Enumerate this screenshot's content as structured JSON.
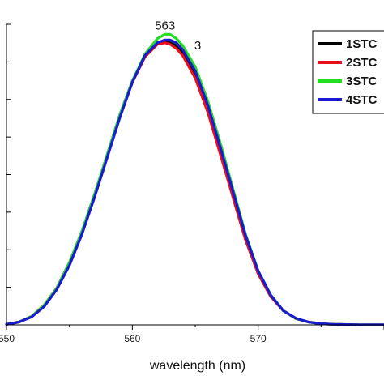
{
  "chart_data": {
    "type": "line",
    "xlabel": "wavelength (nm)",
    "x_ticks": [
      550,
      560,
      570
    ],
    "x_tick_labels": [
      "550",
      "560",
      "570"
    ],
    "xlim": [
      550,
      580
    ],
    "ylim": [
      0,
      1.06
    ],
    "y_tick_count": 8,
    "legend_position": "top-right",
    "annotations": [
      {
        "text": "563",
        "x": 562.6,
        "y": 1.03
      },
      {
        "text": "3",
        "x": 565.2,
        "y": 0.96
      }
    ],
    "series": [
      {
        "name": "1STC",
        "color": "#000000",
        "x": [
          550,
          551,
          552,
          553,
          554,
          555,
          556,
          557,
          558,
          559,
          560,
          561,
          562,
          562.6,
          563,
          563.5,
          564,
          565,
          566,
          567,
          568,
          569,
          570,
          571,
          572,
          573,
          574,
          575,
          576,
          577,
          578,
          579,
          580
        ],
        "y": [
          0.002,
          0.01,
          0.03,
          0.07,
          0.13,
          0.22,
          0.33,
          0.46,
          0.6,
          0.74,
          0.86,
          0.95,
          0.995,
          1.0,
          0.995,
          0.985,
          0.96,
          0.88,
          0.76,
          0.61,
          0.45,
          0.3,
          0.18,
          0.1,
          0.05,
          0.022,
          0.01,
          0.004,
          0.002,
          0.001,
          0.0,
          0.0,
          0.0
        ]
      },
      {
        "name": "2STC",
        "color": "#e8101a",
        "x": [
          550,
          551,
          552,
          553,
          554,
          555,
          556,
          557,
          558,
          559,
          560,
          561,
          562,
          562.6,
          563,
          563.5,
          564,
          565,
          566,
          567,
          568,
          569,
          570,
          571,
          572,
          573,
          574,
          575,
          576,
          577,
          578,
          579,
          580
        ],
        "y": [
          0.002,
          0.01,
          0.03,
          0.07,
          0.13,
          0.215,
          0.325,
          0.455,
          0.595,
          0.735,
          0.855,
          0.945,
          0.99,
          0.995,
          0.99,
          0.975,
          0.95,
          0.87,
          0.75,
          0.6,
          0.45,
          0.3,
          0.18,
          0.1,
          0.05,
          0.022,
          0.01,
          0.004,
          0.002,
          0.001,
          0.0,
          0.0,
          0.0
        ]
      },
      {
        "name": "3STC",
        "color": "#22dd22",
        "x": [
          550,
          551,
          552,
          553,
          554,
          555,
          556,
          557,
          558,
          559,
          560,
          561,
          562,
          562.6,
          563,
          563.5,
          564,
          565,
          566,
          567,
          568,
          569,
          570,
          571,
          572,
          573,
          574,
          575,
          576,
          577,
          578,
          579,
          580
        ],
        "y": [
          0.002,
          0.01,
          0.03,
          0.07,
          0.13,
          0.22,
          0.33,
          0.46,
          0.6,
          0.74,
          0.86,
          0.955,
          1.01,
          1.025,
          1.025,
          1.01,
          0.985,
          0.91,
          0.79,
          0.64,
          0.48,
          0.32,
          0.19,
          0.105,
          0.05,
          0.022,
          0.01,
          0.004,
          0.002,
          0.001,
          0.0,
          0.0,
          0.0
        ]
      },
      {
        "name": "4STC",
        "color": "#1a1ad0",
        "x": [
          550,
          551,
          552,
          553,
          554,
          555,
          556,
          557,
          558,
          559,
          560,
          561,
          562,
          562.6,
          563,
          563.5,
          564,
          565,
          566,
          567,
          568,
          569,
          570,
          571,
          572,
          573,
          574,
          575,
          576,
          577,
          578,
          579,
          580
        ],
        "y": [
          0.002,
          0.01,
          0.028,
          0.065,
          0.125,
          0.21,
          0.32,
          0.45,
          0.59,
          0.73,
          0.855,
          0.95,
          0.995,
          1.005,
          1.005,
          0.995,
          0.97,
          0.895,
          0.775,
          0.625,
          0.47,
          0.315,
          0.19,
          0.105,
          0.05,
          0.023,
          0.01,
          0.004,
          0.002,
          0.001,
          0.0,
          0.0,
          0.0
        ]
      }
    ]
  }
}
